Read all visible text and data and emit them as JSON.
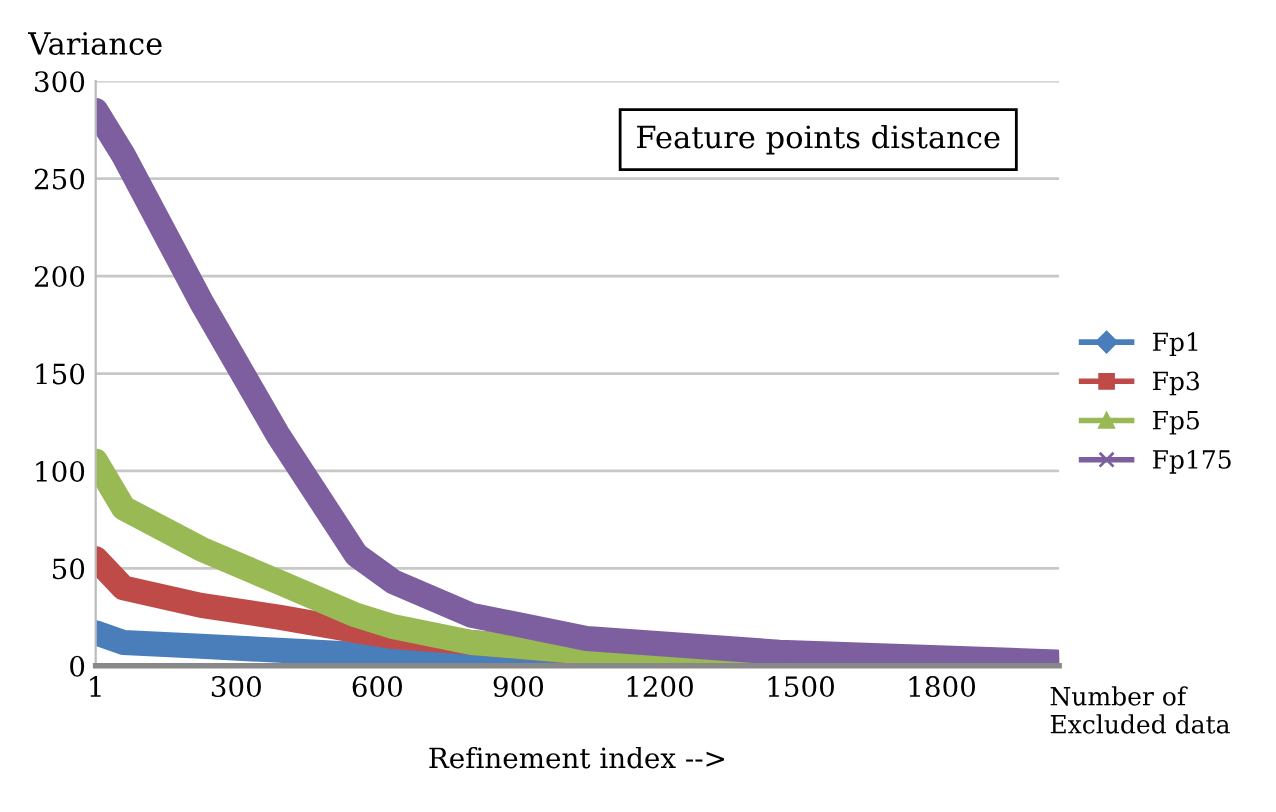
{
  "chart_data": {
    "type": "line",
    "title": "Feature points distance",
    "ylabel": "Variance",
    "xlabel": "Refinement index -->",
    "annotations": [
      "Number of\nExcluded data"
    ],
    "x": [
      1,
      60,
      225,
      390,
      555,
      635,
      800,
      1045,
      1455,
      2045
    ],
    "series": [
      {
        "name": "Fp1",
        "color": "#4a7ebb",
        "marker": "diamond",
        "values": [
          17,
          12,
          10,
          8,
          6,
          5,
          4,
          3,
          1,
          1
        ]
      },
      {
        "name": "Fp3",
        "color": "#be4b48",
        "marker": "square",
        "values": [
          55,
          40,
          31,
          25,
          18,
          15,
          12,
          7,
          null,
          null
        ]
      },
      {
        "name": "Fp5",
        "color": "#98b954",
        "marker": "triangle",
        "values": [
          105,
          81,
          60,
          43,
          26,
          20,
          12,
          7,
          3,
          1
        ]
      },
      {
        "name": "Fp175",
        "color": "#7d5fa0",
        "marker": "cross",
        "values": [
          285,
          262,
          187,
          118,
          57,
          43,
          26,
          14,
          7,
          2
        ]
      }
    ],
    "xlim": [
      1,
      2050
    ],
    "xticks": [
      1,
      300,
      600,
      900,
      1200,
      1500,
      1800
    ],
    "ylim": [
      0,
      300
    ],
    "yticks": [
      0,
      50,
      100,
      150,
      200,
      250,
      300
    ],
    "grid": "y",
    "legend": "right",
    "line_style": "solid"
  }
}
